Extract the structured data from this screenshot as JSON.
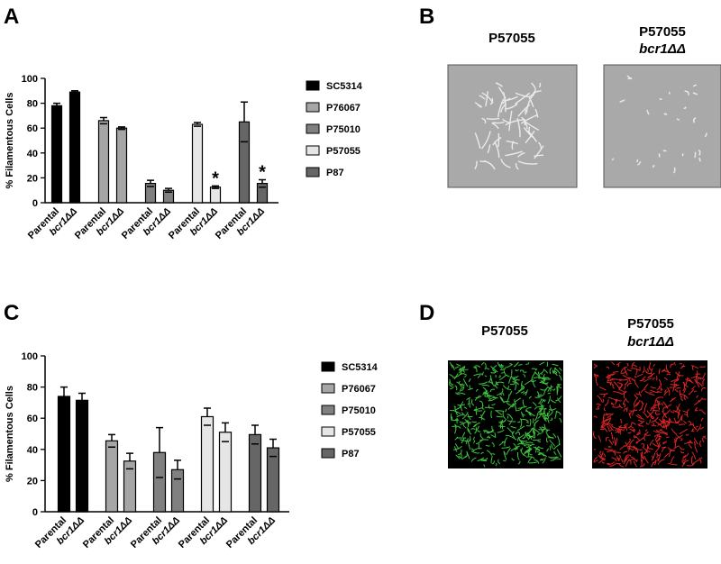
{
  "panel_labels": [
    "A",
    "B",
    "C",
    "D"
  ],
  "chart_data": [
    {
      "type": "bar",
      "ylabel": "% Filamentous Cells",
      "categories": [
        "Parental",
        "bcr1ΔΔ"
      ],
      "ylim": [
        0,
        100
      ],
      "yticks": [
        0,
        20,
        40,
        60,
        80,
        100
      ],
      "legend": "right",
      "series": [
        {
          "name": "SC5314",
          "color": "#000000",
          "values": [
            78,
            89
          ],
          "errors": [
            2,
            1
          ],
          "annotations": [
            null,
            null
          ]
        },
        {
          "name": "P76067",
          "color": "#a6a6a6",
          "values": [
            66,
            60
          ],
          "errors": [
            2.5,
            1
          ],
          "annotations": [
            null,
            null
          ]
        },
        {
          "name": "P75010",
          "color": "#808080",
          "values": [
            15.5,
            10
          ],
          "errors": [
            2.5,
            1.5
          ],
          "annotations": [
            null,
            null
          ]
        },
        {
          "name": "P57055",
          "color": "#e6e6e6",
          "values": [
            63,
            12.5
          ],
          "errors": [
            1.5,
            1
          ],
          "annotations": [
            null,
            "*"
          ]
        },
        {
          "name": "P87",
          "color": "#666666",
          "values": [
            65,
            15.5
          ],
          "errors": [
            16,
            3
          ],
          "annotations": [
            null,
            "*"
          ]
        }
      ]
    },
    {
      "type": "bar",
      "ylabel": "% Filamentous Cells",
      "categories": [
        "Parental",
        "bcr1ΔΔ"
      ],
      "ylim": [
        0,
        100
      ],
      "yticks": [
        0,
        20,
        40,
        60,
        80,
        100
      ],
      "legend": "right",
      "series": [
        {
          "name": "SC5314",
          "color": "#000000",
          "values": [
            74,
            71.5
          ],
          "errors": [
            6,
            4.5
          ],
          "annotations": [
            null,
            null
          ]
        },
        {
          "name": "P76067",
          "color": "#a6a6a6",
          "values": [
            45.5,
            32.5
          ],
          "errors": [
            4,
            5
          ],
          "annotations": [
            null,
            null
          ]
        },
        {
          "name": "P75010",
          "color": "#808080",
          "values": [
            38,
            27
          ],
          "errors": [
            16,
            6
          ],
          "annotations": [
            null,
            null
          ]
        },
        {
          "name": "P57055",
          "color": "#e6e6e6",
          "values": [
            61,
            51
          ],
          "errors": [
            5.5,
            6
          ],
          "annotations": [
            null,
            null
          ]
        },
        {
          "name": "P87",
          "color": "#666666",
          "values": [
            49.5,
            41
          ],
          "errors": [
            6,
            5.5
          ],
          "annotations": [
            null,
            null
          ]
        }
      ]
    }
  ],
  "images": [
    {
      "title": "P57055"
    },
    {
      "title": "P57055",
      "subtitle": "bcr1ΔΔ"
    },
    {
      "title": "P57055"
    },
    {
      "title": "P57055",
      "subtitle": "bcr1ΔΔ"
    }
  ]
}
